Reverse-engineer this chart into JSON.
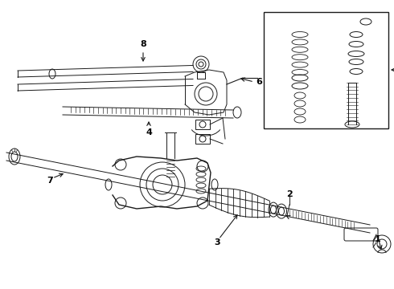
{
  "bg_color": "#ffffff",
  "line_color": "#1a1a1a",
  "label_color": "#000000",
  "fig_width": 4.9,
  "fig_height": 3.6,
  "dpi": 100
}
